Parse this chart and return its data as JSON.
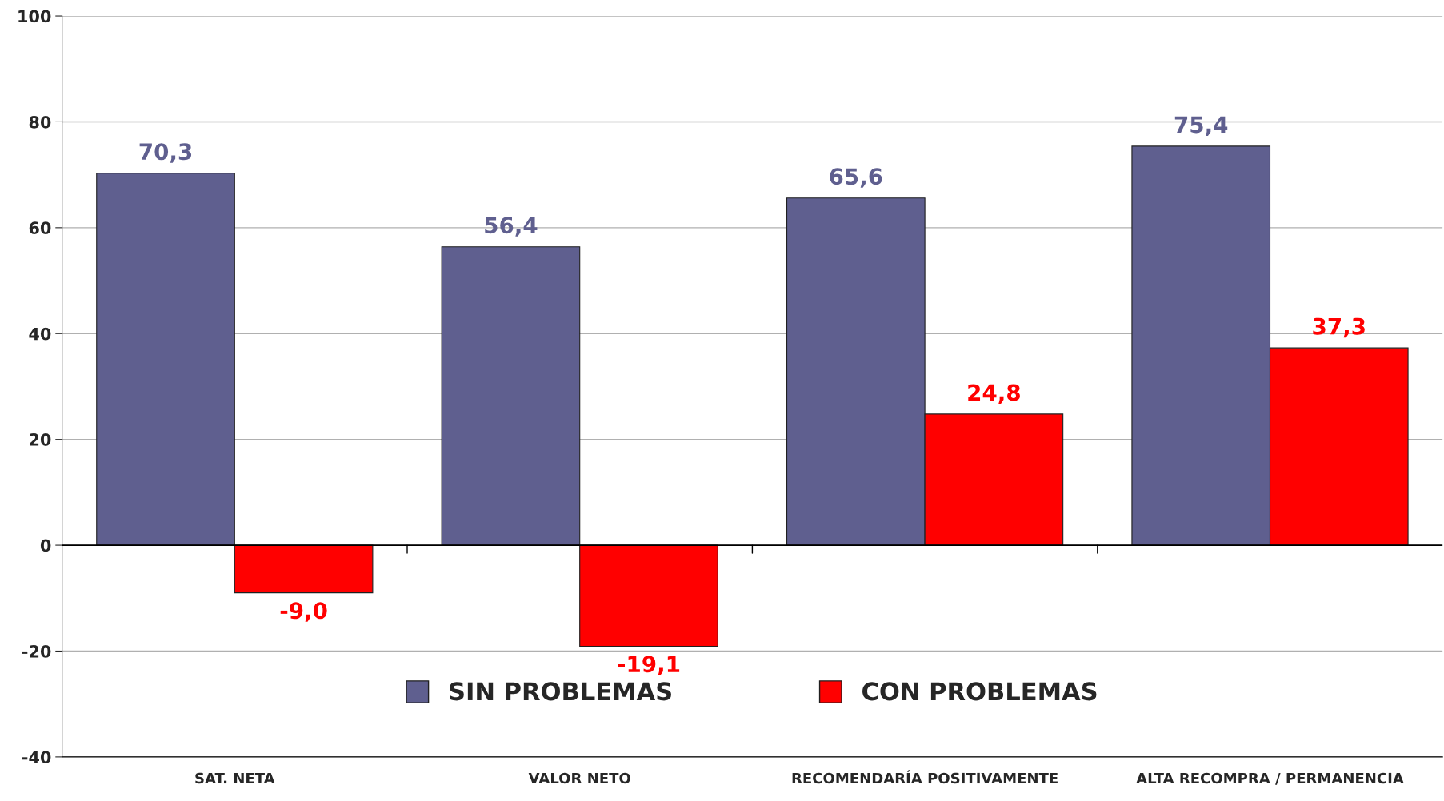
{
  "chart_data": {
    "type": "bar",
    "categories": [
      "SAT. NETA",
      "VALOR NETO",
      "RECOMENDARÍA POSITIVAMENTE",
      "ALTA RECOMPRA / PERMANENCIA"
    ],
    "series": [
      {
        "name": "SIN PROBLEMAS",
        "color": "#5f5f8f",
        "values": [
          70.3,
          56.4,
          65.6,
          75.4
        ],
        "value_labels": [
          "70,3",
          "56,4",
          "65,6",
          "75,4"
        ]
      },
      {
        "name": "CON PROBLEMAS",
        "color": "#ff0000",
        "values": [
          -9.0,
          -19.1,
          24.8,
          37.3
        ],
        "value_labels": [
          "-9,0",
          "-19,1",
          "24,8",
          "37,3"
        ]
      }
    ],
    "ylim": [
      -40,
      100
    ],
    "yticks": [
      -40,
      -20,
      0,
      20,
      40,
      60,
      80,
      100
    ],
    "grid": "y",
    "legend": "bottom",
    "ref_lines": [
      {
        "axis": "y",
        "value": 0,
        "color": "#000000"
      }
    ]
  }
}
